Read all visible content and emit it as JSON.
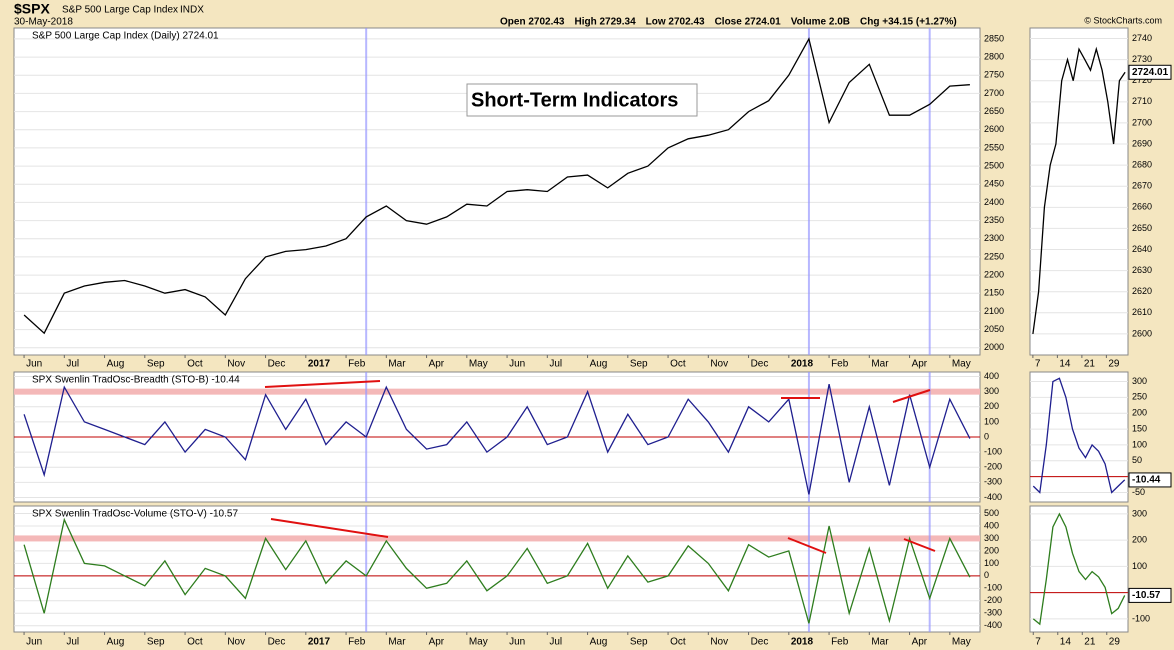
{
  "header": {
    "symbol": "$SPX",
    "name": "S&P 500 Large Cap Index",
    "exchange": "INDX",
    "date": "30-May-2018",
    "quote": [
      "Open 2702.43",
      "High 2729.34",
      "Low 2702.43",
      "Close 2724.01",
      "Volume 2.0B",
      "Chg +34.15 (+1.27%)"
    ],
    "credit": "© StockCharts.com"
  },
  "chart_data": [
    {
      "type": "line",
      "legend": "S&P 500 Large Cap Index (Daily) 2724.01",
      "annotation": "Short-Term Indicators",
      "color": "#000000",
      "values": [
        2090,
        2040,
        2150,
        2170,
        2180,
        2185,
        2170,
        2150,
        2160,
        2140,
        2090,
        2190,
        2250,
        2265,
        2270,
        2280,
        2300,
        2360,
        2390,
        2350,
        2340,
        2360,
        2395,
        2390,
        2430,
        2435,
        2430,
        2470,
        2475,
        2440,
        2480,
        2500,
        2550,
        2575,
        2585,
        2600,
        2650,
        2680,
        2750,
        2850,
        2620,
        2730,
        2780,
        2640,
        2640,
        2670,
        2720,
        2724
      ],
      "x_labels": [
        "Jun",
        "Jul",
        "Aug",
        "Sep",
        "Oct",
        "Nov",
        "Dec",
        "2017",
        "Feb",
        "Mar",
        "Apr",
        "May",
        "Jun",
        "Jul",
        "Aug",
        "Sep",
        "Oct",
        "Nov",
        "Dec",
        "2018",
        "Feb",
        "Mar",
        "Apr",
        "May"
      ],
      "ylim": [
        1980,
        2880
      ],
      "yticks": [
        2000,
        2050,
        2100,
        2150,
        2200,
        2250,
        2300,
        2350,
        2400,
        2450,
        2500,
        2550,
        2600,
        2650,
        2700,
        2750,
        2800,
        2850
      ]
    },
    {
      "type": "line",
      "legend": "SPX Swenlin TradOsc-Breadth (STO-B) -10.44",
      "color": "#1f1f8f",
      "values": [
        150,
        -250,
        330,
        100,
        50,
        0,
        -50,
        100,
        -100,
        50,
        0,
        -150,
        280,
        50,
        250,
        -50,
        100,
        0,
        330,
        50,
        -80,
        -50,
        100,
        -100,
        0,
        200,
        -50,
        0,
        300,
        -100,
        150,
        -50,
        0,
        250,
        100,
        -100,
        200,
        100,
        250,
        -380,
        350,
        -300,
        200,
        -320,
        280,
        -200,
        250,
        -10.44
      ],
      "ylim": [
        -430,
        430
      ],
      "yticks": [
        -400,
        -300,
        -200,
        -100,
        0,
        100,
        200,
        300,
        400
      ]
    },
    {
      "type": "line",
      "legend": "SPX Swenlin TradOsc-Volume (STO-V) -10.57",
      "color": "#2e7d1e",
      "values": [
        250,
        -300,
        450,
        100,
        80,
        0,
        -80,
        120,
        -150,
        60,
        0,
        -180,
        300,
        50,
        280,
        -60,
        120,
        0,
        280,
        60,
        -100,
        -60,
        120,
        -120,
        0,
        220,
        -60,
        0,
        260,
        -100,
        160,
        -50,
        0,
        240,
        100,
        -120,
        250,
        150,
        200,
        -380,
        400,
        -300,
        220,
        -360,
        300,
        -180,
        300,
        -10.57
      ],
      "x_labels": [
        "Jun",
        "Jul",
        "Aug",
        "Sep",
        "Oct",
        "Nov",
        "Dec",
        "2017",
        "Feb",
        "Mar",
        "Apr",
        "May",
        "Jun",
        "Jul",
        "Aug",
        "Sep",
        "Oct",
        "Nov",
        "Dec",
        "2018",
        "Feb",
        "Mar",
        "Apr",
        "May"
      ],
      "ylim": [
        -450,
        560
      ],
      "yticks": [
        -400,
        -300,
        -200,
        -100,
        0,
        100,
        200,
        300,
        400,
        500
      ]
    },
    {
      "type": "line",
      "color": "#000000",
      "values": [
        2600,
        2620,
        2660,
        2680,
        2690,
        2720,
        2730,
        2720,
        2735,
        2730,
        2725,
        2735,
        2725,
        2710,
        2690,
        2720,
        2724.01
      ],
      "x_labels": [
        "7",
        "14",
        "21",
        "29"
      ],
      "ylim": [
        2590,
        2745
      ],
      "yticks": [
        2600,
        2610,
        2620,
        2630,
        2640,
        2650,
        2660,
        2670,
        2680,
        2690,
        2700,
        2710,
        2720,
        2730,
        2740
      ]
    },
    {
      "type": "line",
      "color": "#1f1f8f",
      "values": [
        -30,
        -50,
        100,
        300,
        310,
        250,
        150,
        90,
        60,
        100,
        80,
        40,
        -50,
        -30,
        -10.44
      ],
      "ylim": [
        -80,
        330
      ],
      "yticks": [
        -50,
        0,
        50,
        100,
        150,
        200,
        250,
        300
      ]
    },
    {
      "type": "line",
      "color": "#2e7d1e",
      "values": [
        -100,
        -120,
        50,
        250,
        300,
        250,
        150,
        80,
        50,
        80,
        60,
        20,
        -80,
        -60,
        -10.57
      ],
      "x_labels": [
        "7",
        "14",
        "21",
        "29"
      ],
      "ylim": [
        -150,
        330
      ],
      "yticks": [
        -100,
        0,
        100,
        200,
        300
      ]
    }
  ]
}
